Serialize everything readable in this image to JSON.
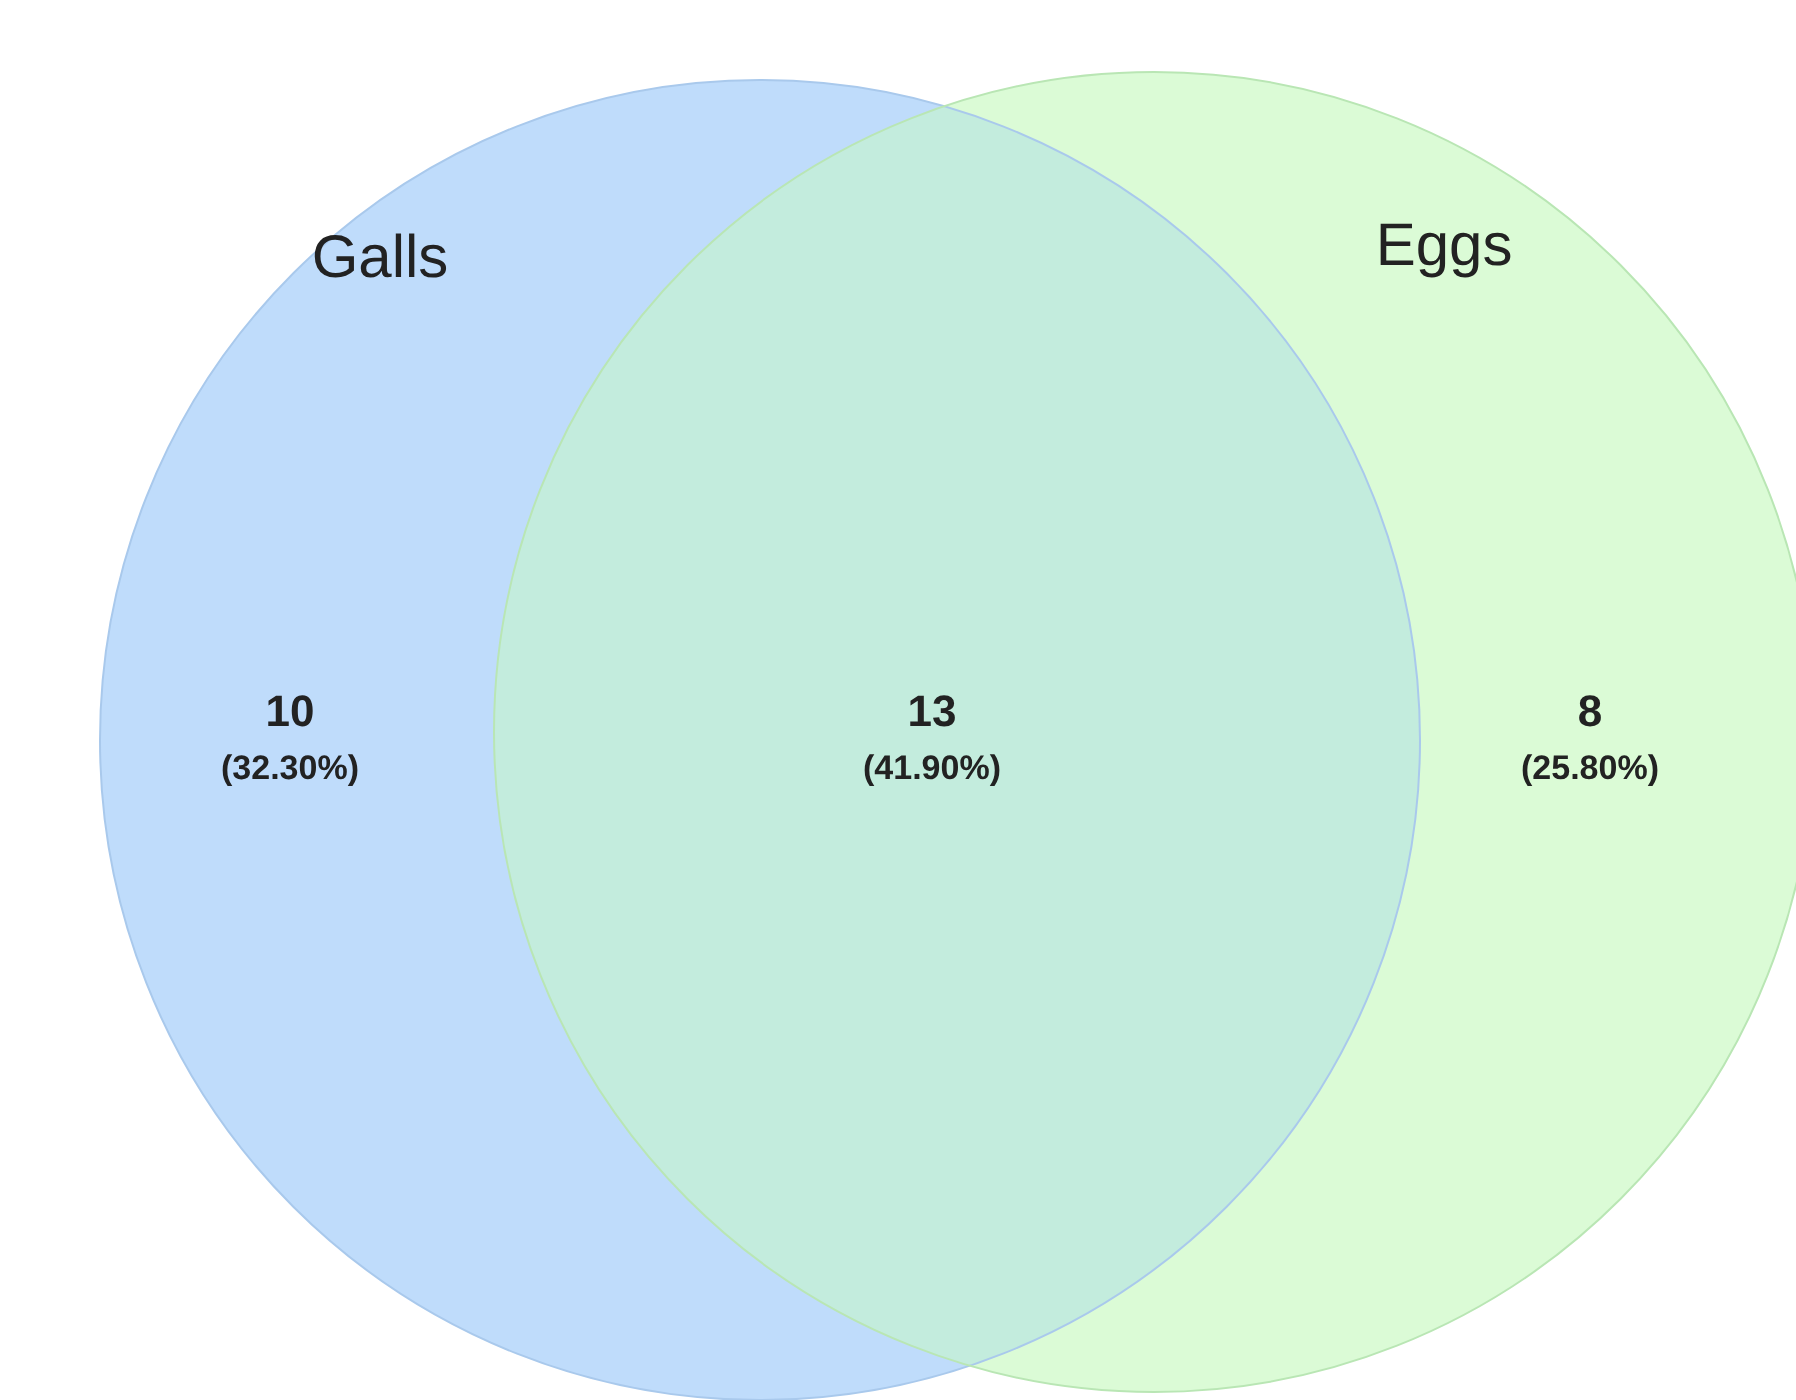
{
  "chart_data": {
    "type": "other",
    "categories": [
      null,
      null,
      null
    ],
    "values": [
      10,
      13,
      8
    ],
    "data_labels": true,
    "colors": [
      "#bfdcfb",
      "#c3ecdd",
      "#dbfbd6"
    ],
    "annotations": [
      "Galls",
      "Eggs",
      "(32.30%)",
      "(41.90%)",
      "(25.80%)"
    ]
  }
}
